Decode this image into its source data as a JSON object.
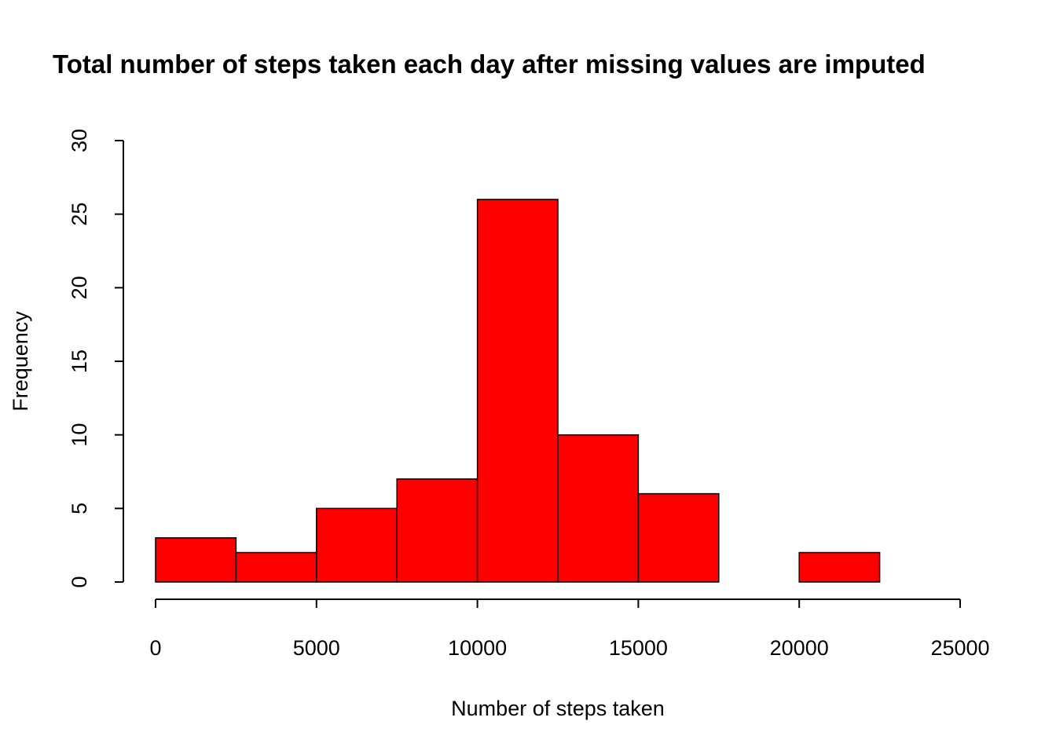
{
  "chart_data": {
    "type": "bar",
    "subtype": "histogram",
    "title": "Total number of steps taken each day after missing values are imputed",
    "xlabel": "Number of steps taken",
    "ylabel": "Frequency",
    "bin_edges": [
      0,
      2500,
      5000,
      7500,
      10000,
      12500,
      15000,
      17500,
      20000,
      22500,
      25000
    ],
    "values": [
      3,
      2,
      5,
      7,
      26,
      10,
      6,
      0,
      2,
      0
    ],
    "xlim": [
      0,
      25000
    ],
    "ylim": [
      0,
      30
    ],
    "x_ticks": [
      0,
      5000,
      10000,
      15000,
      20000,
      25000
    ],
    "x_tick_labels": [
      "0",
      "5000",
      "10000",
      "15000",
      "20000",
      "25000"
    ],
    "y_ticks": [
      0,
      5,
      10,
      15,
      20,
      25,
      30
    ],
    "y_tick_labels": [
      "0",
      "5",
      "10",
      "15",
      "20",
      "25",
      "30"
    ],
    "bar_color": "#ff0000",
    "grid": false,
    "legend": "none"
  }
}
